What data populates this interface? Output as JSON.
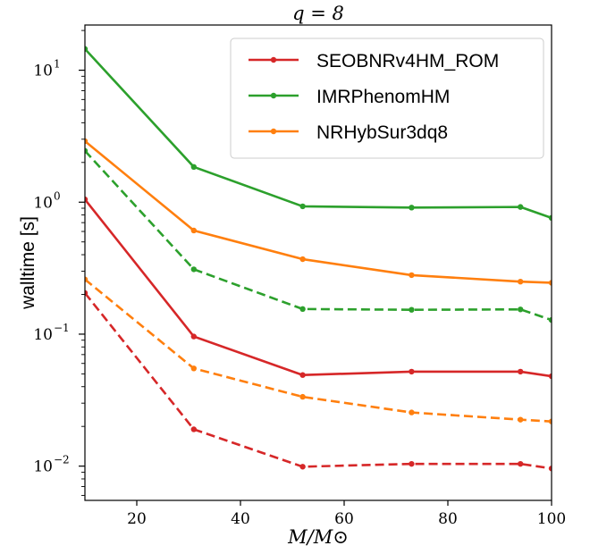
{
  "chart_data": {
    "type": "line",
    "title": "q = 8",
    "xlabel": "M/M⊙",
    "ylabel": "walltime [s]",
    "xlim": [
      10,
      100
    ],
    "ylim": [
      0.0055,
      22
    ],
    "yscale": "log",
    "x_ticks": [
      20,
      40,
      60,
      80,
      100
    ],
    "y_ticks": [
      {
        "value": 10,
        "base": "10",
        "exp": "1"
      },
      {
        "value": 1,
        "base": "10",
        "exp": "0"
      },
      {
        "value": 0.1,
        "base": "10",
        "exp": "−1"
      },
      {
        "value": 0.01,
        "base": "10",
        "exp": "−2"
      }
    ],
    "x": [
      10,
      31,
      52,
      73,
      94,
      100
    ],
    "legend_position": "top-right",
    "series": [
      {
        "name": "SEOBNRv4HM_ROM",
        "color": "#d62728",
        "style": "solid",
        "values": [
          1.05,
          0.096,
          0.049,
          0.052,
          0.052,
          0.048
        ]
      },
      {
        "name": "IMRPhenomHM",
        "color": "#2ca02c",
        "style": "solid",
        "values": [
          14.5,
          1.85,
          0.93,
          0.91,
          0.92,
          0.76
        ]
      },
      {
        "name": "NRHybSur3dq8",
        "color": "#ff7f0e",
        "style": "solid",
        "values": [
          2.9,
          0.61,
          0.37,
          0.28,
          0.25,
          0.245
        ]
      },
      {
        "color": "#2ca02c",
        "style": "dashed",
        "values": [
          2.45,
          0.31,
          0.155,
          0.153,
          0.154,
          0.128
        ]
      },
      {
        "color": "#ff7f0e",
        "style": "dashed",
        "values": [
          0.26,
          0.055,
          0.0335,
          0.0255,
          0.0225,
          0.0218
        ]
      },
      {
        "color": "#d62728",
        "style": "dashed",
        "values": [
          0.205,
          0.019,
          0.0099,
          0.0104,
          0.0104,
          0.0096
        ]
      }
    ]
  }
}
